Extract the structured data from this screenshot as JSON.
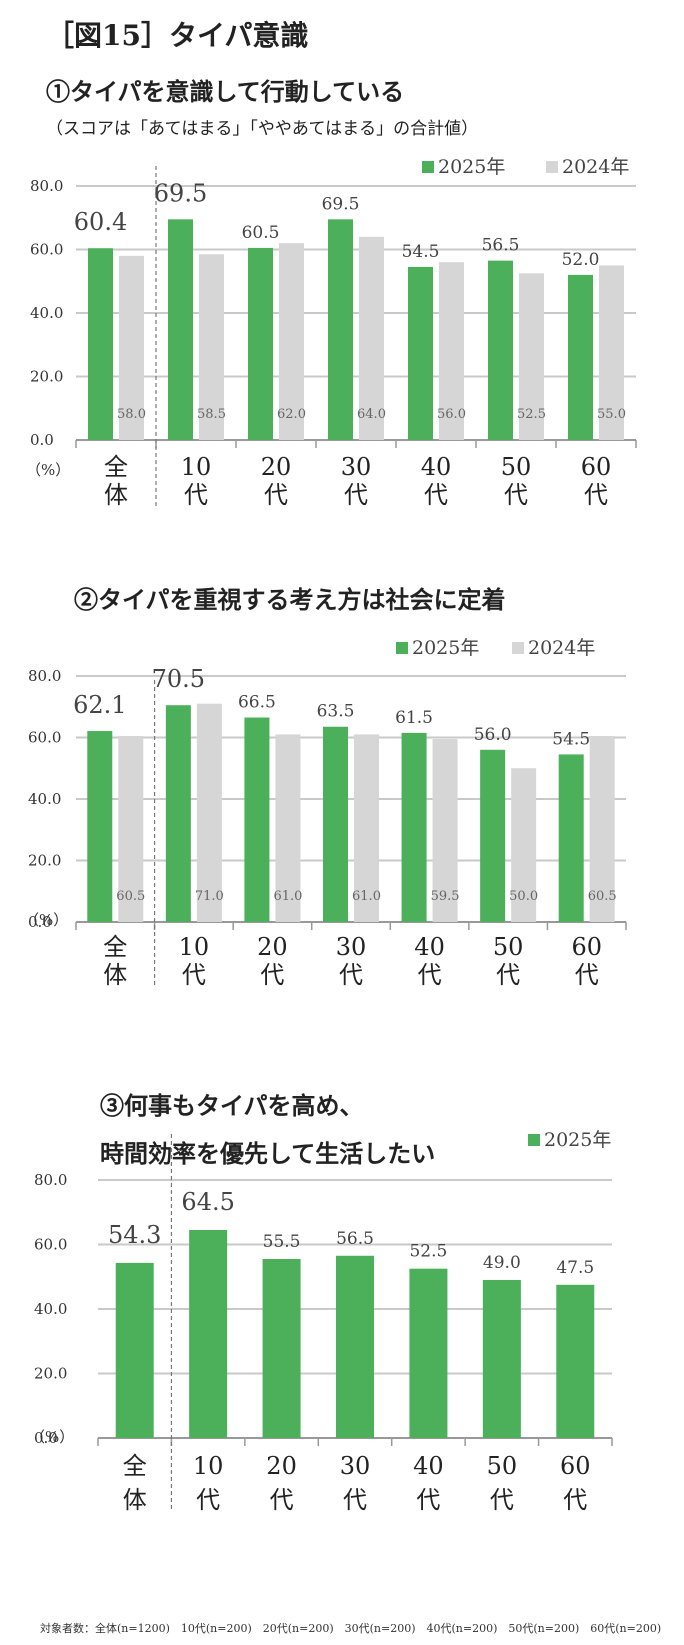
{
  "figure_title": "［図15］タイパ意識",
  "footnote": "対象者数：全体(n=1200)　10代(n=200)　20代(n=200)　30代(n=200)　40代(n=200)　50代(n=200)　60代(n=200)",
  "colors": {
    "s2025": "#4caf5a",
    "s2024": "#d6d6d6",
    "grid": "#c9c9c9",
    "axis": "#999999"
  },
  "chart_data": [
    {
      "type": "bar",
      "title": "①タイパを意識して行動している",
      "subtitle": "（スコアは「あてはまる」「ややあてはまる」の合計値）",
      "categories": [
        [
          "全",
          "体"
        ],
        [
          "10",
          "代"
        ],
        [
          "20",
          "代"
        ],
        [
          "30",
          "代"
        ],
        [
          "40",
          "代"
        ],
        [
          "50",
          "代"
        ],
        [
          "60",
          "代"
        ]
      ],
      "unit_label": "（%）",
      "yticks": [
        "80.0",
        "60.0",
        "40.0",
        "20.0",
        "0.0"
      ],
      "ylim": [
        0,
        80
      ],
      "legend_position": "top-right",
      "series": [
        {
          "name": "2025年",
          "values": [
            60.4,
            69.5,
            60.5,
            69.5,
            54.5,
            56.5,
            52.0
          ]
        },
        {
          "name": "2024年",
          "values": [
            58.0,
            58.5,
            62.0,
            64.0,
            56.0,
            52.5,
            55.0
          ]
        }
      ]
    },
    {
      "type": "bar",
      "title": "②タイパを重視する考え方は社会に定着",
      "categories": [
        [
          "全",
          "体"
        ],
        [
          "10",
          "代"
        ],
        [
          "20",
          "代"
        ],
        [
          "30",
          "代"
        ],
        [
          "40",
          "代"
        ],
        [
          "50",
          "代"
        ],
        [
          "60",
          "代"
        ]
      ],
      "unit_label": "（%）",
      "yticks": [
        "80.0",
        "60.0",
        "40.0",
        "20.0",
        "0.0"
      ],
      "ylim": [
        0,
        80
      ],
      "legend_position": "top-right",
      "series": [
        {
          "name": "2025年",
          "values": [
            62.1,
            70.5,
            66.5,
            63.5,
            61.5,
            56.0,
            54.5
          ]
        },
        {
          "name": "2024年",
          "values": [
            60.5,
            71.0,
            61.0,
            61.0,
            59.5,
            50.0,
            60.5
          ]
        }
      ]
    },
    {
      "type": "bar",
      "title": [
        "③何事もタイパを高め、",
        "時間効率を優先して生活したい"
      ],
      "categories": [
        [
          "全",
          "体"
        ],
        [
          "10",
          "代"
        ],
        [
          "20",
          "代"
        ],
        [
          "30",
          "代"
        ],
        [
          "40",
          "代"
        ],
        [
          "50",
          "代"
        ],
        [
          "60",
          "代"
        ]
      ],
      "unit_label": "（%）",
      "yticks": [
        "80.0",
        "60.0",
        "40.0",
        "20.0",
        "0.0"
      ],
      "ylim": [
        0,
        80
      ],
      "legend_position": "top-right",
      "series": [
        {
          "name": "2025年",
          "values": [
            54.3,
            64.5,
            55.5,
            56.5,
            52.5,
            49.0,
            47.5
          ]
        }
      ]
    }
  ]
}
